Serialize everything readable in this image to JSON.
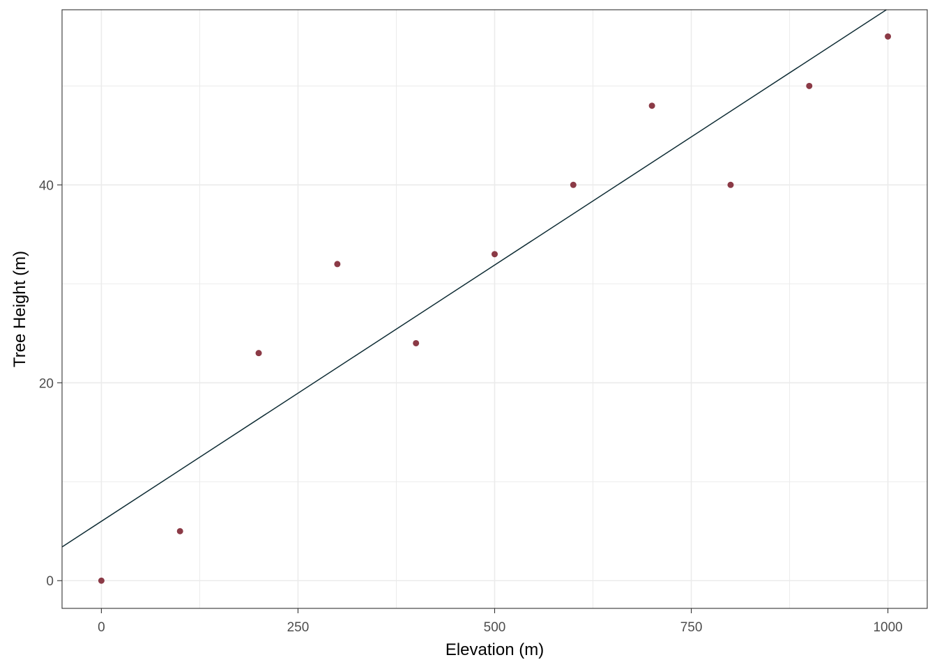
{
  "chart_data": {
    "type": "scatter",
    "xlabel": "Elevation (m)",
    "ylabel": "Tree Height (m)",
    "xlim": [
      -50,
      1050
    ],
    "ylim": [
      -2.8,
      57.7
    ],
    "x_ticks": [
      0,
      250,
      500,
      750,
      1000
    ],
    "x_tick_labels": [
      "0",
      "250",
      "500",
      "750",
      "1000"
    ],
    "y_ticks": [
      0,
      20,
      40
    ],
    "y_tick_labels": [
      "0",
      "20",
      "40"
    ],
    "x_minor_ticks": [
      125,
      375,
      625,
      875
    ],
    "y_minor_ticks": [
      10,
      30,
      50
    ],
    "grid": true,
    "points": {
      "x": [
        0,
        100,
        200,
        300,
        400,
        500,
        600,
        700,
        800,
        900,
        1000
      ],
      "y": [
        0,
        5,
        23,
        32,
        24,
        33,
        40,
        48,
        40,
        50,
        55
      ]
    },
    "trend_line": {
      "intercept": 6.0,
      "slope": 0.0518
    },
    "colors": {
      "points": "#8b3a46",
      "line": "#0d2b33",
      "grid": "#ebebeb",
      "panel_border": "#333333",
      "tick_label": "#4d4d4d"
    }
  }
}
